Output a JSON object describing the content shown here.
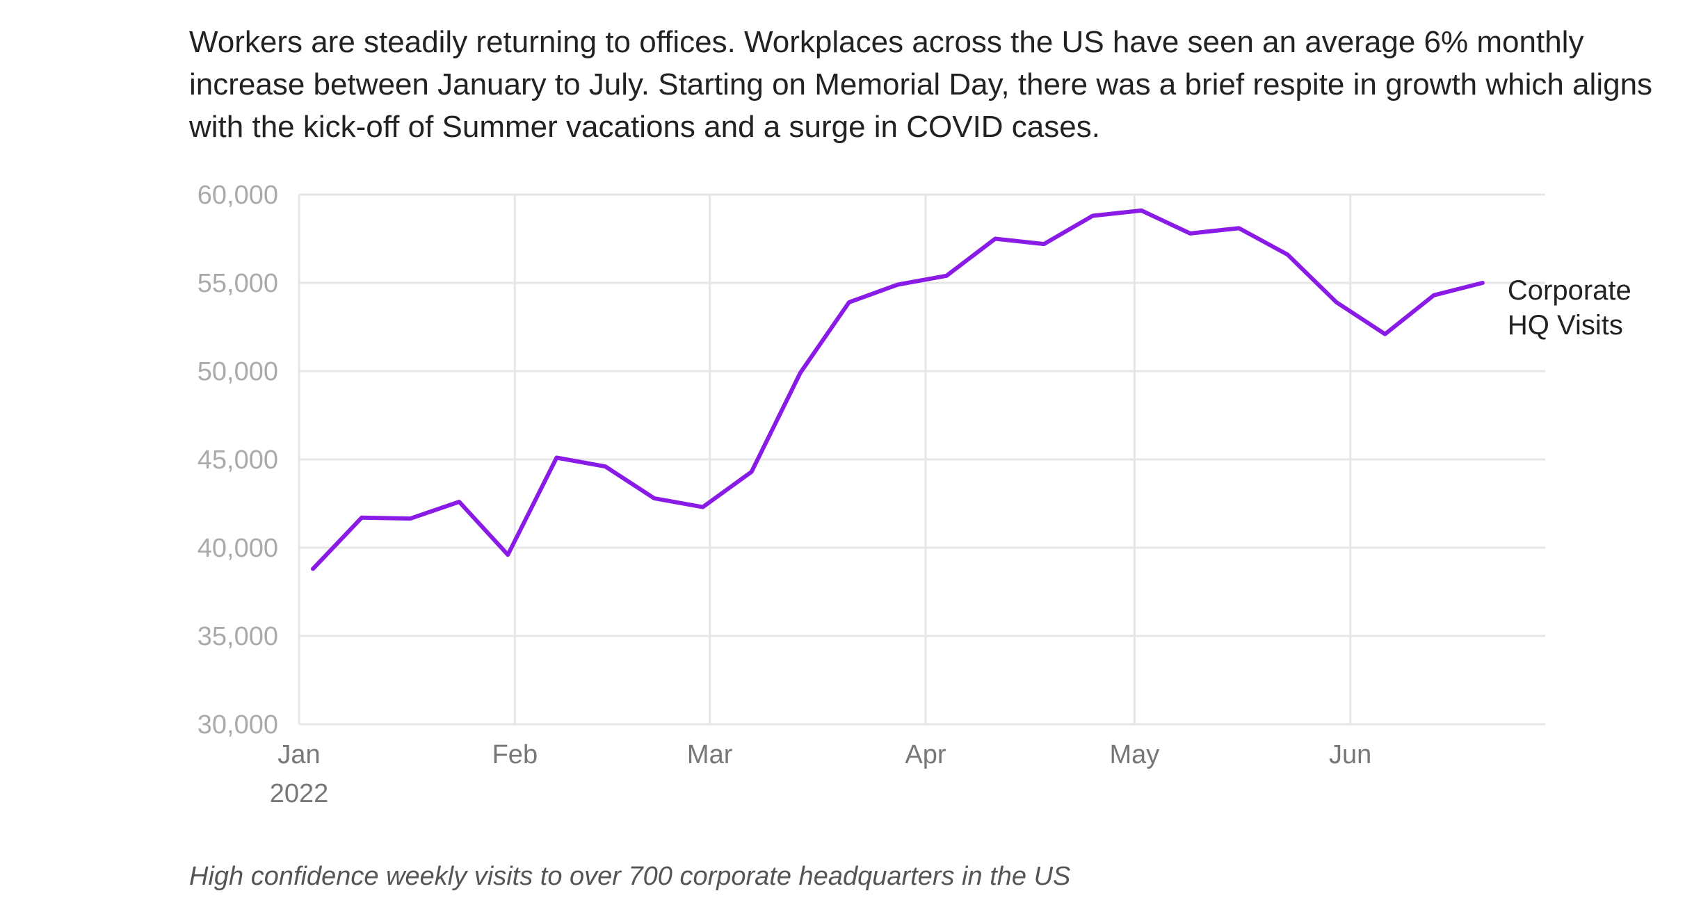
{
  "subtitle": "Workers are steadily returning to offices. Workplaces across the US have seen an average 6% monthly increase between January to July. Starting on Memorial Day, there was a brief respite in growth which aligns with the kick-off of Summer vacations and a surge in COVID cases.",
  "caption": "High confidence weekly visits to over 700 corporate headquarters in the US",
  "colors": {
    "line": "#8A1BE6",
    "grid": "#e6e6e6",
    "tick_text": "#aaaaaa",
    "month_text": "#777777",
    "label_text": "#222222"
  },
  "chart_data": {
    "type": "line",
    "x": [
      "2022-01-03",
      "2022-01-10",
      "2022-01-17",
      "2022-01-24",
      "2022-01-31",
      "2022-02-07",
      "2022-02-14",
      "2022-02-21",
      "2022-02-28",
      "2022-03-07",
      "2022-03-14",
      "2022-03-21",
      "2022-03-28",
      "2022-04-04",
      "2022-04-11",
      "2022-04-18",
      "2022-04-25",
      "2022-05-02",
      "2022-05-09",
      "2022-05-16",
      "2022-05-23",
      "2022-05-30",
      "2022-06-06",
      "2022-06-13",
      "2022-06-20"
    ],
    "series": [
      {
        "name": "Corporate HQ Visits",
        "label_lines": [
          "Corporate",
          "HQ Visits"
        ],
        "values": [
          38800,
          41700,
          41650,
          42600,
          39600,
          45100,
          44600,
          42800,
          42300,
          44300,
          49900,
          53900,
          54900,
          55400,
          57500,
          57200,
          58800,
          59100,
          57800,
          58100,
          56600,
          53900,
          52100,
          54300,
          55000
        ]
      }
    ],
    "ylim": [
      30000,
      60000
    ],
    "yticks": [
      30000,
      35000,
      40000,
      45000,
      50000,
      55000,
      60000
    ],
    "ytick_labels": [
      "30,000",
      "35,000",
      "40,000",
      "45,000",
      "50,000",
      "55,000",
      "60,000"
    ],
    "xlim": [
      "2022-01-01",
      "2022-06-29"
    ],
    "xticks": [
      "2022-01-01",
      "2022-02-01",
      "2022-03-01",
      "2022-04-01",
      "2022-05-01",
      "2022-06-01"
    ],
    "xtick_labels": [
      "Jan",
      "Feb",
      "Mar",
      "Apr",
      "May",
      "Jun"
    ],
    "xtick_year": "2022",
    "grid": true,
    "legend": "direct label at line end"
  }
}
